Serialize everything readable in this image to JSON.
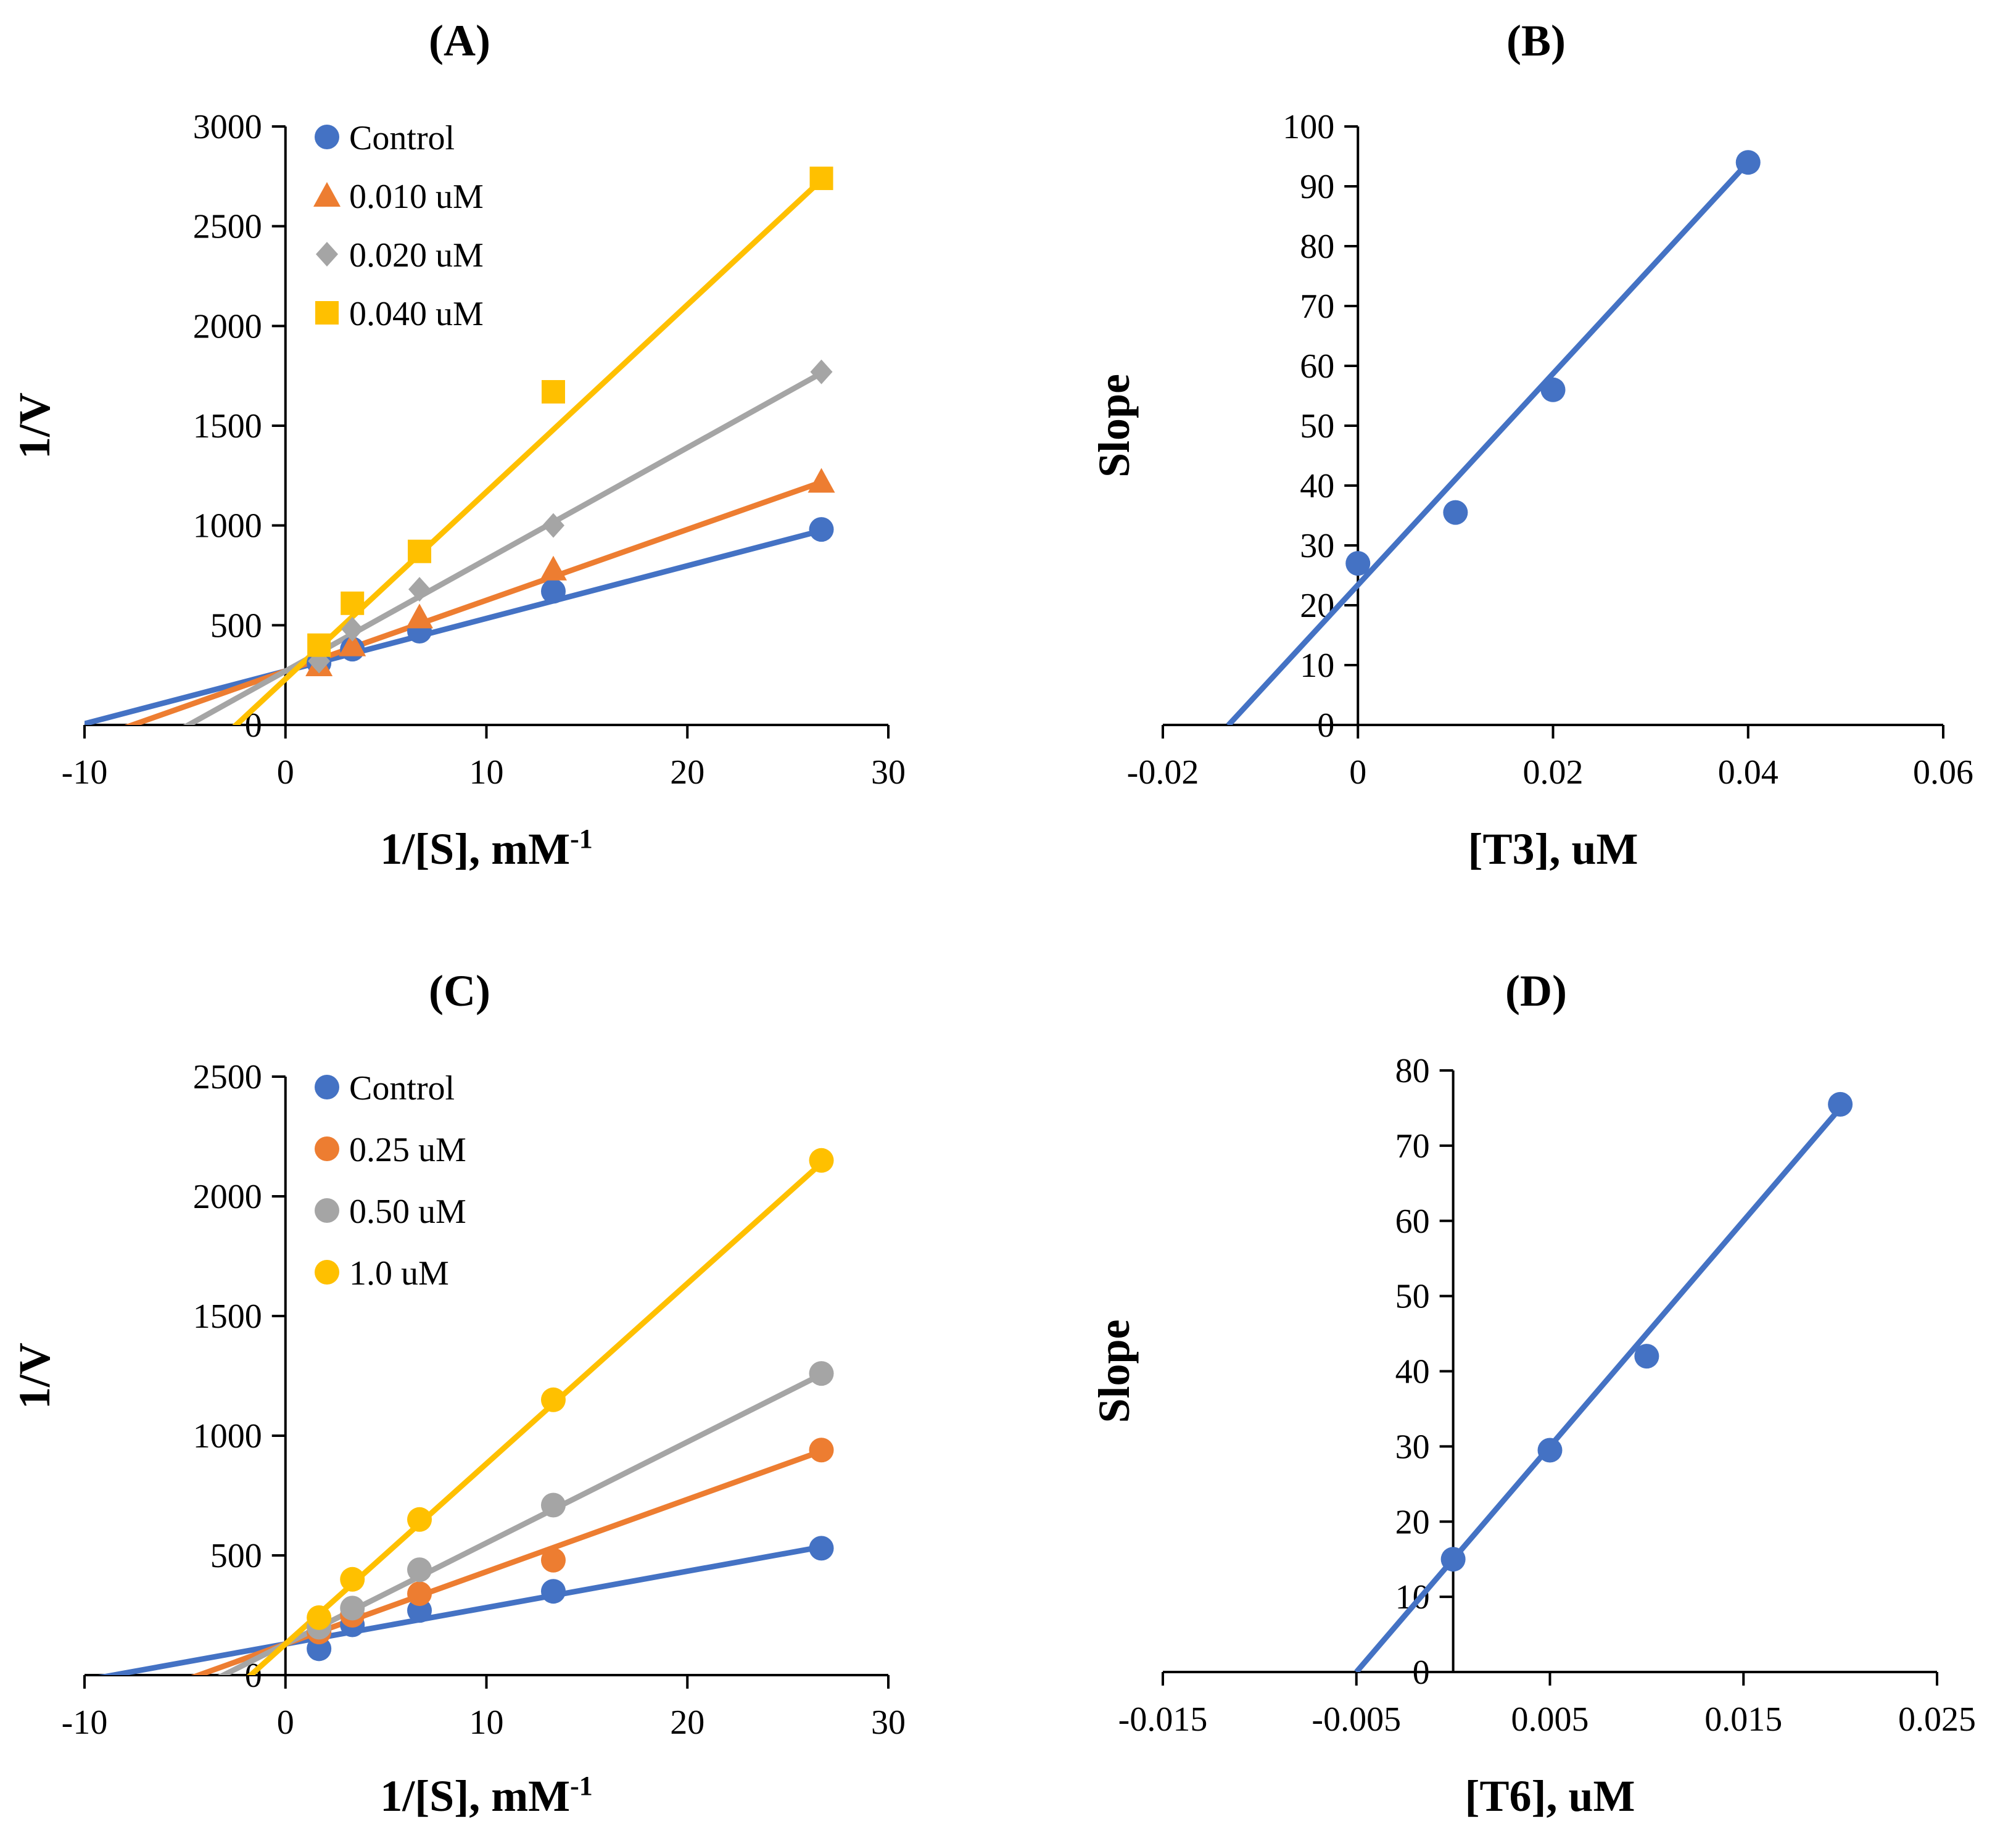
{
  "chart_data": [
    {
      "id": "A",
      "type": "scatter",
      "title": "(A)",
      "xlabel": "1/[S], mM",
      "xlabel_sup": "-1",
      "ylabel": "1/V",
      "xlim": [
        -10,
        30
      ],
      "ylim": [
        0,
        3000
      ],
      "xticks": [
        -10,
        0,
        10,
        20,
        30
      ],
      "yticks": [
        0,
        500,
        1000,
        1500,
        2000,
        2500,
        3000
      ],
      "legend_position": "top-left",
      "series": [
        {
          "name": "Control",
          "color": "#4472C4",
          "marker": "circle",
          "x": [
            1.67,
            3.33,
            6.67,
            13.33,
            26.67
          ],
          "y": [
            310,
            380,
            470,
            670,
            980
          ],
          "fit": {
            "slope": 26.4,
            "intercept": 270
          }
        },
        {
          "name": "0.010 uM",
          "color": "#ED7D31",
          "marker": "triangle",
          "x": [
            1.67,
            3.33,
            6.67,
            13.33,
            26.67
          ],
          "y": [
            300,
            400,
            540,
            780,
            1220
          ],
          "fit": {
            "slope": 35.5,
            "intercept": 270
          }
        },
        {
          "name": "0.020 uM",
          "color": "#A5A5A5",
          "marker": "diamond",
          "x": [
            1.67,
            3.33,
            6.67,
            13.33,
            26.67
          ],
          "y": [
            320,
            480,
            680,
            1000,
            1770
          ],
          "fit": {
            "slope": 56,
            "intercept": 270
          }
        },
        {
          "name": "0.040 uM",
          "color": "#FFC000",
          "marker": "square",
          "x": [
            1.67,
            3.33,
            6.67,
            13.33,
            26.67
          ],
          "y": [
            400,
            610,
            870,
            1670,
            2740
          ],
          "fit": {
            "slope": 93.8,
            "intercept": 230
          }
        }
      ]
    },
    {
      "id": "B",
      "type": "scatter",
      "title": "(B)",
      "xlabel": "[T3], uM",
      "ylabel": "Slope",
      "xlim": [
        -0.02,
        0.06
      ],
      "ylim": [
        0,
        100
      ],
      "xticks": [
        -0.02,
        0,
        0.02,
        0.04,
        0.06
      ],
      "xtick_labels": [
        "-0.02",
        "0",
        "0.02",
        "0.04",
        "0.06"
      ],
      "yticks": [
        0,
        10,
        20,
        30,
        40,
        50,
        60,
        70,
        80,
        90,
        100
      ],
      "series": [
        {
          "name": "Slope",
          "color": "#4472C4",
          "marker": "circle",
          "x": [
            0,
            0.01,
            0.02,
            0.04
          ],
          "y": [
            27,
            35.5,
            56,
            94
          ],
          "fit": {
            "slope": 1765,
            "intercept": 23.4,
            "x_start": -0.0133
          }
        }
      ]
    },
    {
      "id": "C",
      "type": "scatter",
      "title": "(C)",
      "xlabel": "1/[S], mM",
      "xlabel_sup": "-1",
      "ylabel": "1/V",
      "xlim": [
        -10,
        30
      ],
      "ylim": [
        0,
        2500
      ],
      "xticks": [
        -10,
        0,
        10,
        20,
        30
      ],
      "yticks": [
        0,
        500,
        1000,
        1500,
        2000,
        2500
      ],
      "legend_position": "top-left",
      "series": [
        {
          "name": "Control",
          "color": "#4472C4",
          "marker": "circle",
          "x": [
            1.67,
            3.33,
            6.67,
            13.33,
            26.67
          ],
          "y": [
            110,
            210,
            270,
            350,
            530
          ],
          "fit": {
            "slope": 15.2,
            "intercept": 130
          }
        },
        {
          "name": "0.25 uM",
          "color": "#ED7D31",
          "marker": "circle",
          "x": [
            1.67,
            3.33,
            6.67,
            13.33,
            26.67
          ],
          "y": [
            180,
            250,
            340,
            480,
            940
          ],
          "fit": {
            "slope": 30.2,
            "intercept": 130
          }
        },
        {
          "name": "0.50 uM",
          "color": "#A5A5A5",
          "marker": "circle",
          "x": [
            1.67,
            3.33,
            6.67,
            13.33,
            26.67
          ],
          "y": [
            200,
            280,
            440,
            710,
            1260
          ],
          "fit": {
            "slope": 42.2,
            "intercept": 130
          }
        },
        {
          "name": "1.0 uM",
          "color": "#FFC000",
          "marker": "circle",
          "x": [
            1.67,
            3.33,
            6.67,
            13.33,
            26.67
          ],
          "y": [
            240,
            400,
            650,
            1150,
            2150
          ],
          "fit": {
            "slope": 75.3,
            "intercept": 130
          }
        }
      ]
    },
    {
      "id": "D",
      "type": "scatter",
      "title": "(D)",
      "xlabel": "[T6], uM",
      "ylabel": "Slope",
      "xlim": [
        -0.015,
        0.025
      ],
      "ylim": [
        0,
        80
      ],
      "xticks": [
        -0.015,
        -0.005,
        0.005,
        0.015,
        0.025
      ],
      "xtick_labels": [
        "-0.015",
        "-0.005",
        "0.005",
        "0.015",
        "0.025"
      ],
      "yticks": [
        0,
        10,
        20,
        30,
        40,
        50,
        60,
        70,
        80
      ],
      "series": [
        {
          "name": "Slope",
          "color": "#4472C4",
          "marker": "circle",
          "x": [
            0,
            0.005,
            0.01,
            0.02
          ],
          "y": [
            15,
            29.5,
            42,
            75.5
          ],
          "fit": {
            "slope": 3000,
            "intercept": 15,
            "x_start": -0.005
          }
        }
      ]
    }
  ]
}
